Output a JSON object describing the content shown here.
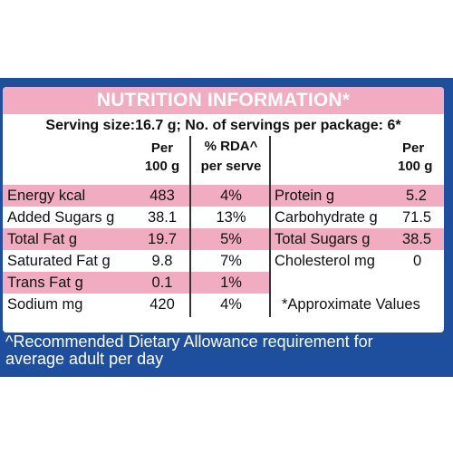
{
  "header": {
    "title": "NUTRITION INFORMATION*",
    "serving": "Serving size:16.7 g; No. of servings per package: 6*"
  },
  "columns": {
    "per_100g_line1": "Per",
    "per_100g_line2": "100 g",
    "rda_line1": "% RDA^",
    "rda_line2": "per serve",
    "right_per_line1": "Per",
    "right_per_line2": "100 g"
  },
  "left_rows": [
    {
      "name": "Energy kcal",
      "per100": "483",
      "rda": "4%"
    },
    {
      "name": "Added Sugars g",
      "per100": "38.1",
      "rda": "13%"
    },
    {
      "name": "Total Fat g",
      "per100": "19.7",
      "rda": "5%"
    },
    {
      "name": "Saturated Fat g",
      "per100": "9.8",
      "rda": "7%"
    },
    {
      "name": "Trans Fat g",
      "per100": "0.1",
      "rda": "1%"
    },
    {
      "name": "Sodium mg",
      "per100": "420",
      "rda": "4%"
    }
  ],
  "right_rows": [
    {
      "name": "Protein g",
      "per100": "5.2"
    },
    {
      "name": "Carbohydrate g",
      "per100": "71.5"
    },
    {
      "name": "Total Sugars g",
      "per100": "38.5"
    },
    {
      "name": "Cholesterol mg",
      "per100": "0"
    }
  ],
  "note": "*Approximate Values",
  "footer": {
    "line1": "^Recommended Dietary Allowance requirement for",
    "line2": "average adult per day"
  },
  "colors": {
    "pink": "#f2acc1",
    "blue": "#1e4f9e"
  }
}
